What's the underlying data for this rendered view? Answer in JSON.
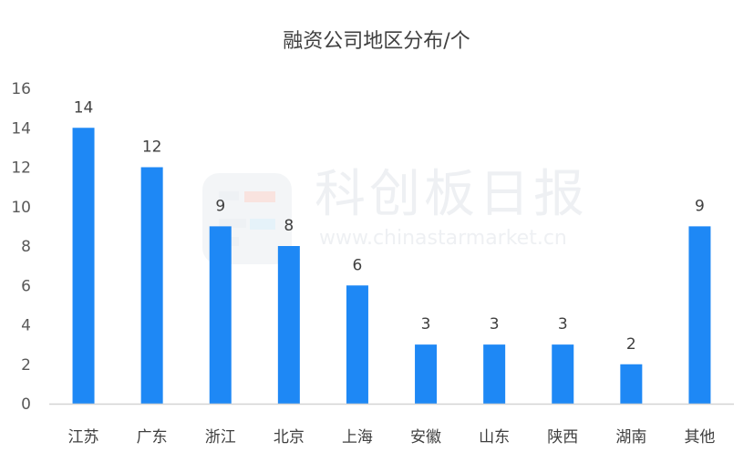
{
  "chart_data": {
    "type": "bar",
    "title": "融资公司地区分布/个",
    "xlabel": "",
    "ylabel": "",
    "categories": [
      "江苏",
      "广东",
      "浙江",
      "北京",
      "上海",
      "安徽",
      "山东",
      "陕西",
      "湖南",
      "其他"
    ],
    "values": [
      14,
      12,
      9,
      8,
      6,
      3,
      3,
      3,
      2,
      9
    ],
    "ylim": [
      0,
      16
    ],
    "yticks": [
      0,
      2,
      4,
      6,
      8,
      10,
      12,
      14,
      16
    ],
    "grid": false,
    "legend": "none",
    "data_labels": true,
    "bar_color": "#1e88f5"
  },
  "watermark": {
    "name": "科创板日报",
    "url": "www.chinastarmarket.cn"
  }
}
